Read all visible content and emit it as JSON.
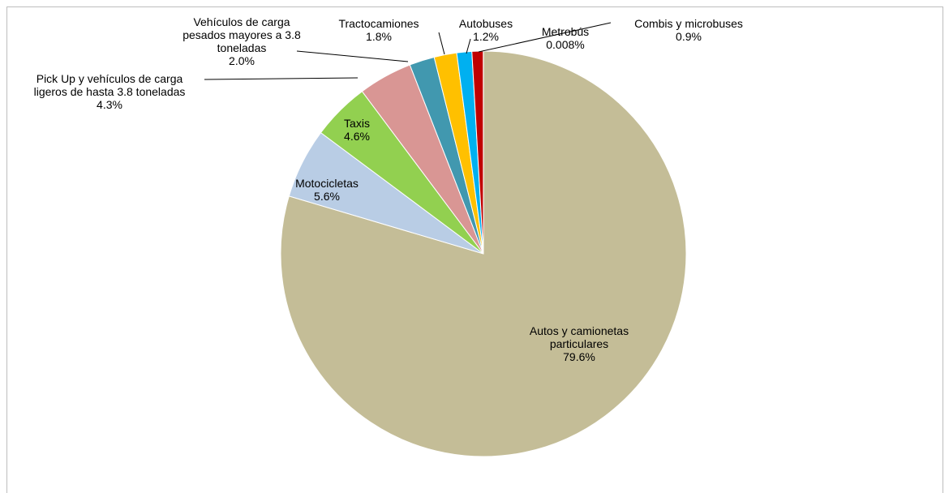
{
  "chart_data": {
    "type": "pie",
    "title": "",
    "slices": [
      {
        "name": "Autos y camionetas particulares",
        "name_lines": [
          "Autos y camionetas",
          "particulares"
        ],
        "pct_label": "79.6%",
        "value": 79.6,
        "color": "#c4bd97"
      },
      {
        "name": "Motocicletas",
        "name_lines": [
          "Motocicletas"
        ],
        "pct_label": "5.6%",
        "value": 5.6,
        "color": "#b9cde5"
      },
      {
        "name": "Taxis",
        "name_lines": [
          "Taxis"
        ],
        "pct_label": "4.6%",
        "value": 4.6,
        "color": "#92d050"
      },
      {
        "name": "Pick Up y vehículos de carga ligeros de hasta 3.8 toneladas",
        "name_lines": [
          "Pick Up y vehículos de carga",
          "ligeros de hasta 3.8 toneladas"
        ],
        "pct_label": "4.3%",
        "value": 4.3,
        "color": "#d99694"
      },
      {
        "name": "Vehículos de carga pesados mayores a 3.8 toneladas",
        "name_lines": [
          "Vehículos de carga",
          "pesados mayores a 3.8",
          "toneladas"
        ],
        "pct_label": "2.0%",
        "value": 2.0,
        "color": "#4198af"
      },
      {
        "name": "Tractocamiones",
        "name_lines": [
          "Tractocamiones"
        ],
        "pct_label": "1.8%",
        "value": 1.8,
        "color": "#ffc000"
      },
      {
        "name": "Autobuses",
        "name_lines": [
          "Autobuses"
        ],
        "pct_label": "1.2%",
        "value": 1.2,
        "color": "#00b0f0"
      },
      {
        "name": "Combis y microbuses",
        "name_lines": [
          "Combis y microbuses"
        ],
        "pct_label": "0.9%",
        "value": 0.9,
        "color": "#c00000"
      },
      {
        "name": "Metrobús",
        "name_lines": [
          "Metrobús"
        ],
        "pct_label": "0.008%",
        "value": 0.008,
        "color": "#7030a0"
      }
    ],
    "start_angle": "12 o'clock",
    "direction": "clockwise",
    "legend": "none",
    "data_labels": "category name and percentage"
  }
}
